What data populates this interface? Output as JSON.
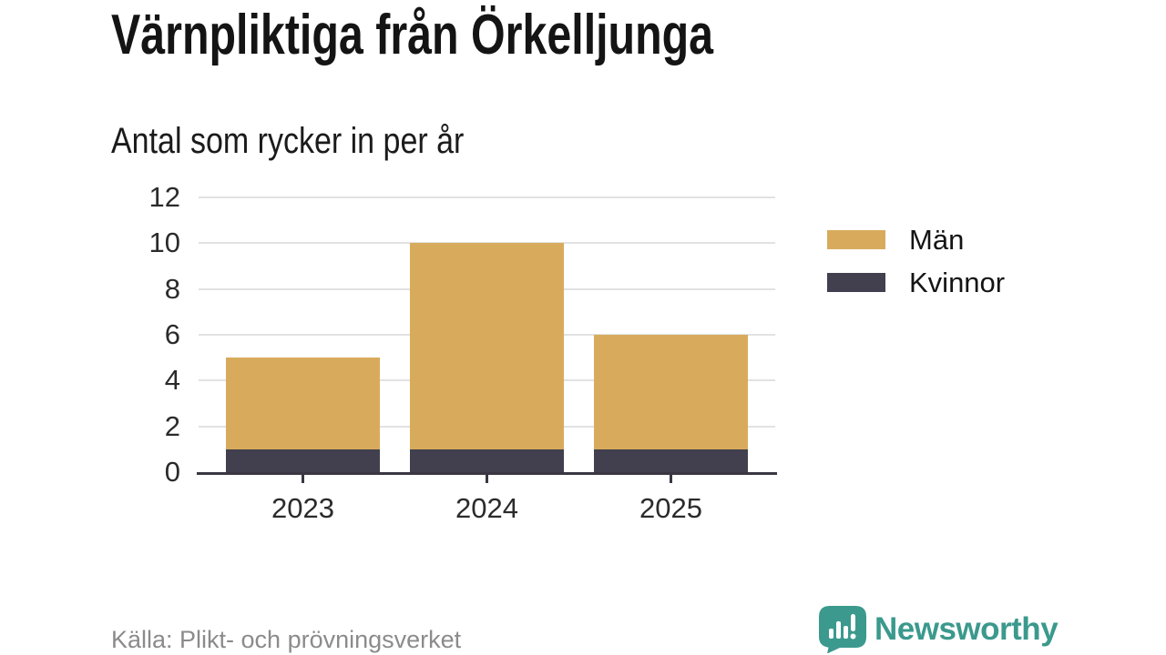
{
  "header": {
    "title": "Värnpliktiga från Örkelljunga",
    "subtitle": "Antal som rycker in per år"
  },
  "chart_data": {
    "type": "bar",
    "stacked": true,
    "title": "Värnpliktiga från Örkelljunga",
    "subtitle": "Antal som rycker in per år",
    "categories": [
      "2023",
      "2024",
      "2025"
    ],
    "series": [
      {
        "name": "Män",
        "color": "#d8ab5c",
        "values": [
          4,
          9,
          5
        ]
      },
      {
        "name": "Kvinnor",
        "color": "#423f4e",
        "values": [
          1,
          1,
          1
        ]
      }
    ],
    "stack_order_bottom_to_top": [
      "Kvinnor",
      "Män"
    ],
    "totals": [
      5,
      10,
      6
    ],
    "xlabel": "",
    "ylabel": "",
    "ylim": [
      0,
      12
    ],
    "yticks": [
      0,
      2,
      4,
      6,
      8,
      10,
      12
    ],
    "grid": "horizontal",
    "legend_position": "right"
  },
  "footer": {
    "source": "Källa: Plikt- och prövningsverket",
    "brand": "Newsworthy"
  },
  "colors": {
    "men": "#d8ab5c",
    "women": "#423f4e",
    "brand_teal": "#3b998d",
    "gridline": "#e2e2e2",
    "axis": "#3a3743",
    "title_text": "#141414",
    "muted_text": "#8b8b8b"
  }
}
